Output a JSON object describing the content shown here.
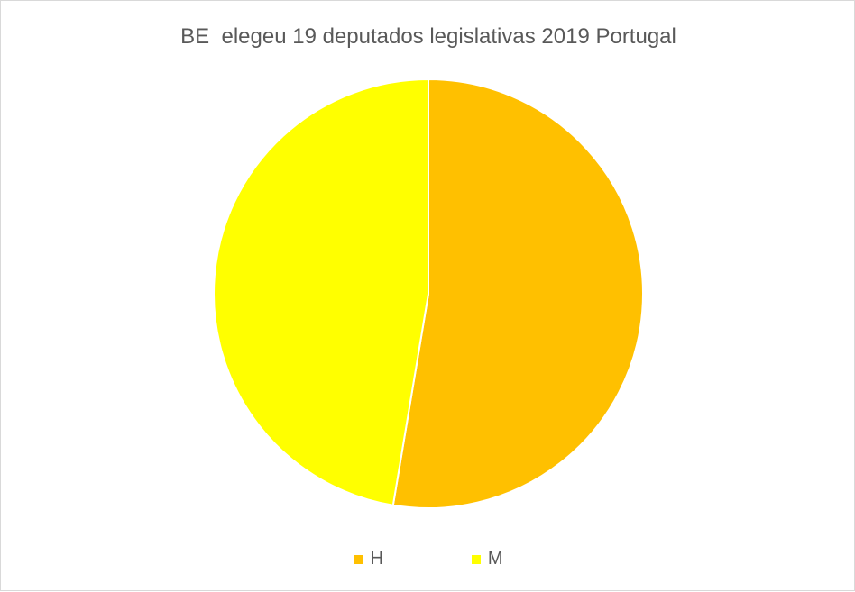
{
  "chart_data": {
    "type": "pie",
    "title": "BE  elegeu 19 deputados legislativas 2019 Portugal",
    "categories": [
      "H",
      "M"
    ],
    "values": [
      10,
      9
    ],
    "colors": [
      "#ffc000",
      "#ffff00"
    ],
    "legend_position": "bottom"
  }
}
